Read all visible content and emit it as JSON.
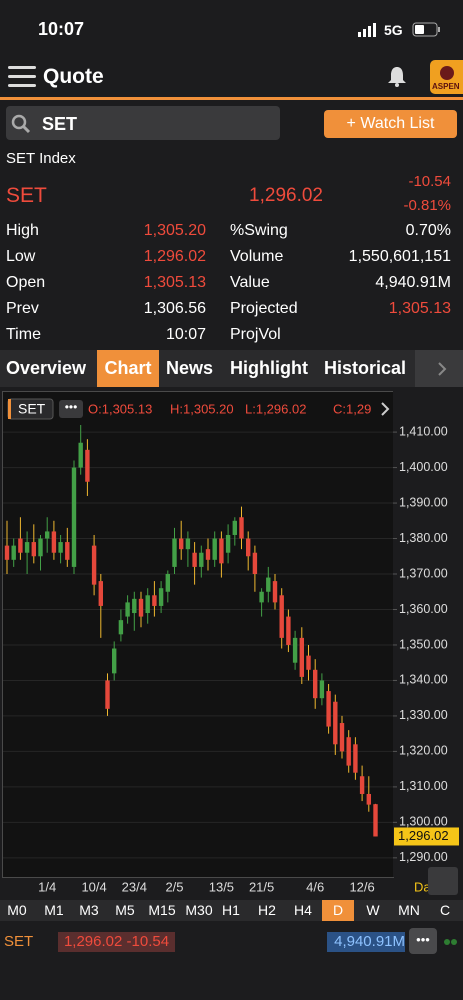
{
  "status_bar": {
    "time": "10:07",
    "network": "5G"
  },
  "header": {
    "title": "Quote",
    "logo": "ASPEN"
  },
  "search": {
    "query": "SET",
    "button": "+ Watch List"
  },
  "quote": {
    "name": "SET Index",
    "symbol": "SET",
    "last": "1,296.02",
    "change": "-10.54",
    "change_pct": "-0.81%",
    "fields": [
      {
        "label": "High",
        "value": "1,305.20",
        "label2": "%Swing",
        "value2": "0.70%"
      },
      {
        "label": "Low",
        "value": "1,296.02",
        "label2": "Volume",
        "value2": "1,550,601,151"
      },
      {
        "label": "Open",
        "value": "1,305.13",
        "label2": "Value",
        "value2": "4,940.91M"
      },
      {
        "label": "Prev",
        "value": "1,306.56",
        "label2": "Projected",
        "value2": "1,305.13"
      },
      {
        "label": "Time",
        "value": "10:07",
        "label2": "ProjVol"
      }
    ]
  },
  "tabs": [
    "Overview",
    "Chart",
    "News",
    "Highlight",
    "Historical"
  ],
  "active_tab": 1,
  "chart_data": {
    "type": "candlestick",
    "symbol_label": "SET",
    "ohlc_summary": [
      "O:1,305.13",
      "H:1,305.20",
      "L:1,296.02",
      "C:1,29"
    ],
    "period_label": "Day",
    "categories": [
      null,
      null,
      null,
      null,
      null,
      null,
      "1/4",
      null,
      null,
      null,
      null,
      null,
      null,
      "10/4",
      null,
      null,
      null,
      null,
      null,
      "23/4",
      null,
      null,
      null,
      null,
      null,
      "2/5",
      null,
      null,
      null,
      null,
      null,
      null,
      "13/5",
      null,
      null,
      null,
      null,
      null,
      "21/5",
      null,
      null,
      null,
      null,
      null,
      null,
      null,
      "4/6",
      null,
      null,
      null,
      null,
      null,
      null,
      "12/6",
      null,
      null
    ],
    "open": [
      1378,
      1374,
      1380,
      1376,
      1379,
      1375,
      1380,
      1382,
      1376,
      1379,
      1372,
      1400,
      1405,
      1378,
      1368,
      1340,
      1342,
      1353,
      1358,
      1359,
      1363,
      1359,
      1364,
      1361,
      1365,
      1372,
      1380,
      1377,
      1376,
      1372,
      1377,
      1374,
      1380,
      1376,
      1381,
      1386,
      1380,
      1376,
      1362,
      1365,
      1368,
      1364,
      1358,
      1345,
      1352,
      1347,
      1343,
      1335,
      1337,
      1334,
      1328,
      1324,
      1322,
      1313,
      1308,
      1305.13
    ],
    "high": [
      1385,
      1380,
      1386,
      1382,
      1384,
      1381,
      1386,
      1385,
      1381,
      1383,
      1402,
      1412,
      1408,
      1381,
      1370,
      1342,
      1351,
      1360,
      1364,
      1365,
      1365,
      1366,
      1368,
      1368,
      1371,
      1383,
      1385,
      1382,
      1379,
      1378,
      1380,
      1382,
      1382,
      1384,
      1386,
      1389,
      1382,
      1378,
      1366,
      1372,
      1370,
      1366,
      1360,
      1354,
      1355,
      1350,
      1346,
      1342,
      1339,
      1336,
      1330,
      1326,
      1324,
      1316,
      1313,
      1305.2
    ],
    "low": [
      1370,
      1372,
      1374,
      1370,
      1373,
      1371,
      1376,
      1374,
      1373,
      1372,
      1370,
      1398,
      1392,
      1364,
      1352,
      1330,
      1340,
      1351,
      1356,
      1354,
      1355,
      1356,
      1358,
      1359,
      1362,
      1370,
      1374,
      1372,
      1367,
      1369,
      1371,
      1372,
      1369,
      1373,
      1378,
      1377,
      1371,
      1365,
      1358,
      1362,
      1360,
      1349,
      1348,
      1343,
      1339,
      1340,
      1332,
      1333,
      1325,
      1319,
      1318,
      1314,
      1312,
      1306,
      1303,
      1296.02
    ],
    "close": [
      1374,
      1378,
      1376,
      1379,
      1375,
      1380,
      1382,
      1376,
      1379,
      1374,
      1400,
      1407,
      1396,
      1367,
      1361,
      1332,
      1349,
      1357,
      1362,
      1363,
      1358,
      1364,
      1361,
      1366,
      1370,
      1380,
      1377,
      1380,
      1372,
      1376,
      1374,
      1380,
      1373,
      1381,
      1385,
      1380,
      1375,
      1370,
      1365,
      1369,
      1362,
      1352,
      1350,
      1352,
      1341,
      1343,
      1335,
      1340,
      1327,
      1322,
      1320,
      1316,
      1314,
      1308,
      1305,
      1296.02
    ],
    "up_color": "#43a047",
    "down_color": "#e5483b",
    "ylim": [
      1284.6,
      1421.3
    ],
    "yticks": [
      {
        "value": 1290,
        "label": "1,290.00"
      },
      {
        "value": 1300,
        "label": "1,300.00"
      },
      {
        "value": 1310,
        "label": "1,310.00"
      },
      {
        "value": 1320,
        "label": "1,320.00"
      },
      {
        "value": 1330,
        "label": "1,330.00"
      },
      {
        "value": 1340,
        "label": "1,340.00"
      },
      {
        "value": 1350,
        "label": "1,350.00"
      },
      {
        "value": 1360,
        "label": "1,360.00"
      },
      {
        "value": 1370,
        "label": "1,370.00"
      },
      {
        "value": 1380,
        "label": "1,380.00"
      },
      {
        "value": 1390,
        "label": "1,390.00"
      },
      {
        "value": 1400,
        "label": "1,400.00"
      },
      {
        "value": 1410,
        "label": "1,410.00"
      }
    ],
    "last_price_label": {
      "value": 1296.02,
      "label": "1,296.02"
    },
    "grid": true
  },
  "timeframes": [
    "M0",
    "M1",
    "M3",
    "M5",
    "M15",
    "M30",
    "H1",
    "H2",
    "H4",
    "D",
    "W",
    "MN",
    "C"
  ],
  "active_timeframe": 9,
  "footer": {
    "symbol": "SET",
    "price_change": "1,296.02 -10.54",
    "value": "4,940.91M"
  }
}
